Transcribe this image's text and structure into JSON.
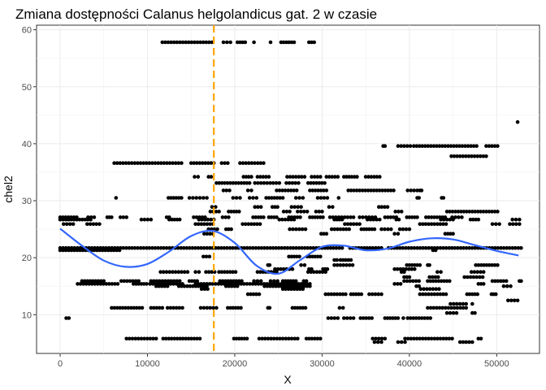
{
  "chart_data": {
    "type": "scatter",
    "title": "Zmiana dostępności Calanus helgolandicus gat. 2 w czasie",
    "xlabel": "X",
    "ylabel": "chel2",
    "xlim": [
      -2700,
      54900
    ],
    "ylim": [
      3.2,
      60.8
    ],
    "x_ticks": [
      0,
      10000,
      20000,
      30000,
      40000,
      50000
    ],
    "y_ticks": [
      10,
      20,
      30,
      40,
      50,
      60
    ],
    "grid": true,
    "legend": "none",
    "vline": {
      "x": 17600,
      "color": "#FFA500",
      "style": "dashed"
    },
    "smooth": {
      "color": "#3366FF",
      "x": [
        0,
        2500,
        5000,
        7500,
        10000,
        12500,
        15000,
        17500,
        20000,
        22500,
        25000,
        27500,
        30000,
        32500,
        35000,
        37500,
        40000,
        42500,
        45000,
        47500,
        50000,
        52500
      ],
      "y": [
        25.1,
        22.1,
        19.5,
        18.4,
        18.9,
        21.1,
        23.8,
        24.7,
        22.6,
        18.6,
        17.2,
        19.6,
        21.9,
        22.1,
        21.3,
        21.6,
        22.8,
        23.4,
        23.2,
        22.2,
        21.2,
        20.4
      ]
    },
    "bands": [
      {
        "y": 57.8,
        "segments": [
          [
            11700,
            17400
          ],
          [
            18700,
            19500
          ],
          [
            20300,
            21200
          ],
          [
            22200,
            22300
          ],
          [
            24100,
            24200
          ],
          [
            25300,
            26800
          ],
          [
            28500,
            29100
          ]
        ]
      },
      {
        "y": 43.8,
        "segments": [
          [
            52400,
            52400
          ]
        ]
      },
      {
        "y": 39.6,
        "segments": [
          [
            37000,
            37200
          ],
          [
            38700,
            40100
          ],
          [
            40500,
            47700
          ],
          [
            48800,
            50100
          ]
        ]
      },
      {
        "y": 37.8,
        "segments": [
          [
            44800,
            48800
          ]
        ]
      },
      {
        "y": 36.6,
        "segments": [
          [
            6200,
            13900
          ],
          [
            15000,
            17600
          ],
          [
            18500,
            19200
          ],
          [
            20600,
            23300
          ]
        ]
      },
      {
        "y": 34.2,
        "segments": [
          [
            15400,
            15800
          ],
          [
            17000,
            17300
          ],
          [
            21000,
            21900
          ],
          [
            22600,
            23900
          ],
          [
            26000,
            28000
          ],
          [
            28800,
            29800
          ],
          [
            30500,
            31800
          ],
          [
            32500,
            34000
          ],
          [
            35000,
            36600
          ]
        ]
      },
      {
        "y": 33.1,
        "segments": [
          [
            17900,
            21700
          ],
          [
            22300,
            25100
          ],
          [
            25900,
            27300
          ],
          [
            28400,
            30300
          ]
        ]
      },
      {
        "y": 31.8,
        "segments": [
          [
            18700,
            19400
          ],
          [
            21500,
            21900
          ],
          [
            24800,
            27100
          ],
          [
            28600,
            30500
          ],
          [
            33000,
            38200
          ],
          [
            39800,
            40900
          ],
          [
            41200,
            41400
          ]
        ]
      },
      {
        "y": 30.5,
        "segments": [
          [
            6400,
            6500
          ],
          [
            12400,
            13900
          ],
          [
            14800,
            15600
          ],
          [
            16000,
            16800
          ],
          [
            19800,
            20600
          ],
          [
            21700,
            22500
          ],
          [
            23600,
            25500
          ],
          [
            27000,
            27800
          ],
          [
            29500,
            30600
          ],
          [
            31900,
            32000
          ],
          [
            40900,
            41100
          ],
          [
            43700,
            43900
          ]
        ]
      },
      {
        "y": 28.9,
        "segments": [
          [
            17400,
            17800
          ],
          [
            22300,
            23000
          ],
          [
            24300,
            24900
          ],
          [
            26500,
            27600
          ],
          [
            30800,
            31200
          ],
          [
            36500,
            37500
          ]
        ]
      },
      {
        "y": 28.1,
        "segments": [
          [
            17200,
            18200
          ],
          [
            19300,
            20500
          ],
          [
            25600,
            26300
          ],
          [
            27200,
            28300
          ],
          [
            29300,
            30000
          ],
          [
            38400,
            39100
          ],
          [
            44300,
            50100
          ]
        ]
      },
      {
        "y": 27.1,
        "segments": [
          [
            0,
            1900
          ],
          [
            3200,
            3900
          ],
          [
            5400,
            5900
          ],
          [
            6900,
            7600
          ],
          [
            12200,
            12500
          ],
          [
            15300,
            16600
          ],
          [
            18600,
            19300
          ],
          [
            22100,
            23300
          ],
          [
            23900,
            24800
          ],
          [
            26200,
            27500
          ],
          [
            28600,
            30100
          ],
          [
            30900,
            33600
          ],
          [
            34300,
            36100
          ],
          [
            37200,
            38500
          ],
          [
            39700,
            40900
          ],
          [
            41900,
            44100
          ],
          [
            44900,
            46000
          ]
        ]
      },
      {
        "y": 26.7,
        "segments": [
          [
            0,
            3500
          ],
          [
            9300,
            10400
          ],
          [
            12500,
            13700
          ],
          [
            15900,
            17600
          ],
          [
            25100,
            26800
          ],
          [
            31400,
            32300
          ],
          [
            35200,
            36600
          ],
          [
            38500,
            38800
          ],
          [
            43600,
            45000
          ],
          [
            47000,
            47900
          ],
          [
            51800,
            52600
          ]
        ]
      },
      {
        "y": 25.9,
        "segments": [
          [
            400,
            1500
          ],
          [
            3100,
            4500
          ],
          [
            15500,
            17500
          ],
          [
            20900,
            22900
          ],
          [
            32600,
            34300
          ],
          [
            41200,
            44200
          ],
          [
            49500,
            50300
          ],
          [
            51500,
            52600
          ]
        ]
      },
      {
        "y": 25.0,
        "segments": [
          [
            17000,
            18000
          ],
          [
            19000,
            19600
          ],
          [
            26300,
            28100
          ],
          [
            31100,
            33100
          ],
          [
            34500,
            36000
          ],
          [
            36800,
            37900
          ],
          [
            38900,
            40000
          ]
        ]
      },
      {
        "y": 24.2,
        "segments": [
          [
            16500,
            17500
          ],
          [
            29900,
            30500
          ],
          [
            38300,
            38700
          ],
          [
            44100,
            45000
          ]
        ]
      },
      {
        "y": 21.7,
        "segments": [
          [
            0,
            32300
          ],
          [
            33200,
            36800
          ],
          [
            37600,
            52800
          ]
        ]
      },
      {
        "y": 21.3,
        "segments": [
          [
            0,
            6800
          ],
          [
            42700,
            43000
          ]
        ]
      },
      {
        "y": 20.2,
        "segments": [
          [
            16400,
            17100
          ],
          [
            26200,
            27400
          ],
          [
            28300,
            29800
          ]
        ]
      },
      {
        "y": 19.6,
        "segments": [
          [
            31400,
            31700
          ],
          [
            32100,
            33300
          ]
        ]
      },
      {
        "y": 18.7,
        "segments": [
          [
            23800,
            24000
          ],
          [
            27600,
            28000
          ],
          [
            31400,
            33500
          ],
          [
            39700,
            41200
          ],
          [
            42100,
            42300
          ],
          [
            47600,
            50100
          ]
        ]
      },
      {
        "y": 18.0,
        "segments": [
          [
            24600,
            26600
          ],
          [
            28500,
            28800
          ],
          [
            30100,
            30600
          ],
          [
            38300,
            40600
          ]
        ]
      },
      {
        "y": 17.5,
        "segments": [
          [
            11500,
            14600
          ],
          [
            15500,
            15900
          ],
          [
            16700,
            17700
          ],
          [
            18200,
            20100
          ],
          [
            22600,
            24800
          ],
          [
            28400,
            30400
          ],
          [
            39100,
            39400
          ],
          [
            43200,
            43600
          ],
          [
            47100,
            48500
          ]
        ]
      },
      {
        "y": 16.6,
        "segments": [
          [
            39400,
            40000
          ],
          [
            42300,
            43300
          ],
          [
            46300,
            48400
          ]
        ]
      },
      {
        "y": 15.9,
        "segments": [
          [
            2500,
            5000
          ],
          [
            7000,
            9000
          ],
          [
            10400,
            13700
          ],
          [
            14800,
            15700
          ],
          [
            18300,
            20800
          ],
          [
            22200,
            23000
          ],
          [
            24100,
            24900
          ],
          [
            25500,
            27000
          ],
          [
            27900,
            28200
          ],
          [
            39400,
            41100
          ],
          [
            42100,
            44600
          ],
          [
            49500,
            51100
          ],
          [
            52600,
            52800
          ]
        ]
      },
      {
        "y": 15.4,
        "segments": [
          [
            2000,
            6600
          ],
          [
            8400,
            9900
          ],
          [
            10300,
            14000
          ],
          [
            15500,
            28600
          ],
          [
            38300,
            39000
          ],
          [
            47900,
            48500
          ]
        ]
      },
      {
        "y": 15.0,
        "segments": [
          [
            11000,
            12300
          ],
          [
            13600,
            16800
          ],
          [
            19000,
            20300
          ],
          [
            23400,
            28600
          ],
          [
            40800,
            41100
          ],
          [
            50800,
            51600
          ]
        ]
      },
      {
        "y": 14.5,
        "segments": [
          [
            16200,
            16900
          ],
          [
            25500,
            27800
          ],
          [
            41300,
            43400
          ]
        ]
      },
      {
        "y": 13.6,
        "segments": [
          [
            21500,
            22800
          ],
          [
            30400,
            32700
          ],
          [
            33300,
            34500
          ],
          [
            35400,
            36800
          ],
          [
            41200,
            44200
          ],
          [
            46600,
            47800
          ],
          [
            49400,
            49900
          ]
        ]
      },
      {
        "y": 12.5,
        "segments": [
          [
            51300,
            52400
          ]
        ]
      },
      {
        "y": 11.9,
        "segments": [
          [
            44700,
            46500
          ],
          [
            47200,
            47300
          ]
        ]
      },
      {
        "y": 11.2,
        "segments": [
          [
            5900,
            9400
          ],
          [
            10400,
            11700
          ],
          [
            12300,
            14000
          ],
          [
            16100,
            17900
          ],
          [
            19200,
            20700
          ],
          [
            23800,
            24000
          ],
          [
            26600,
            28100
          ],
          [
            32000,
            32400
          ],
          [
            42100,
            46500
          ]
        ]
      },
      {
        "y": 10.3,
        "segments": [
          [
            44300,
            45400
          ],
          [
            47200,
            47500
          ]
        ]
      },
      {
        "y": 9.4,
        "segments": [
          [
            700,
            1000
          ],
          [
            30700,
            31800
          ],
          [
            32500,
            33600
          ],
          [
            34400,
            35700
          ],
          [
            37200,
            38700
          ],
          [
            39300,
            39400
          ],
          [
            39800,
            42400
          ]
        ]
      },
      {
        "y": 5.8,
        "segments": [
          [
            7600,
            11000
          ],
          [
            11800,
            16000
          ],
          [
            19900,
            21400
          ],
          [
            22800,
            27200
          ],
          [
            28200,
            29800
          ],
          [
            35800,
            37200
          ],
          [
            39500,
            44900
          ],
          [
            47900,
            48200
          ]
        ]
      },
      {
        "y": 5.2,
        "segments": [
          [
            36000,
            36800
          ],
          [
            38700,
            39500
          ],
          [
            45800,
            47200
          ]
        ]
      }
    ]
  }
}
